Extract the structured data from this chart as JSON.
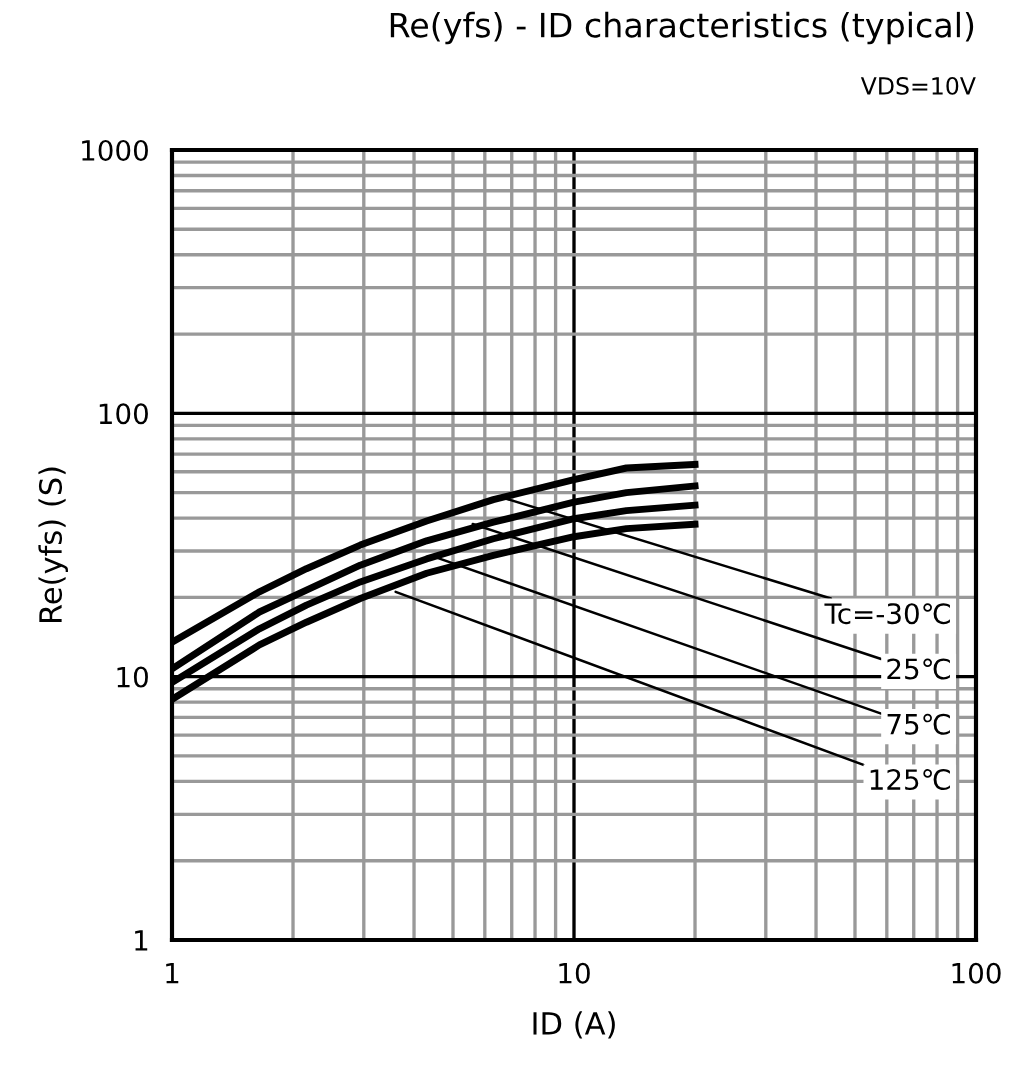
{
  "chart_data": {
    "type": "line",
    "title": "Re(yfs) - ID characteristics (typical)",
    "subtitle": "VDS=10V",
    "xlabel": "ID (A)",
    "ylabel": "Re(yfs) (S)",
    "log": "xy",
    "xlim": [
      1,
      100
    ],
    "ylim": [
      1,
      1000
    ],
    "xticks": [
      1,
      10,
      100
    ],
    "yticks": [
      1,
      10,
      100,
      1000
    ],
    "grid": true,
    "marker": "none",
    "line_style": "solid",
    "series": [
      {
        "color": "#000000",
        "x": [
          1,
          1.65,
          2.16,
          2.94,
          4.3,
          6.3,
          10,
          13.5,
          20
        ],
        "values": [
          13.5,
          21,
          25.7,
          31.6,
          39,
          47,
          56,
          62,
          64
        ]
      },
      {
        "color": "#000000",
        "x": [
          1,
          1.65,
          2.16,
          2.94,
          4.3,
          6.3,
          10,
          13.5,
          20
        ],
        "values": [
          10.7,
          17.6,
          21.3,
          26.5,
          32.8,
          38.6,
          46,
          50,
          53
        ]
      },
      {
        "color": "#000000",
        "x": [
          1,
          1.65,
          2.16,
          2.94,
          4.3,
          6.3,
          10,
          13.5,
          20
        ],
        "values": [
          9.5,
          15.2,
          18.7,
          22.9,
          28,
          33.4,
          39.8,
          42.7,
          44.8
        ]
      },
      {
        "color": "#000000",
        "x": [
          1,
          1.65,
          2.16,
          2.94,
          4.3,
          6.3,
          10,
          13.5,
          20
        ],
        "values": [
          8.2,
          13.2,
          16.1,
          19.8,
          24.7,
          28.9,
          34,
          36.5,
          37.9
        ]
      }
    ],
    "annotations": [
      {
        "text": "Tc=-30℃",
        "x": 6.6,
        "y": 48
      },
      {
        "text": "25℃",
        "x": 5.6,
        "y": 38
      },
      {
        "text": "75℃",
        "x": 4.5,
        "y": 28.5
      },
      {
        "text": "125℃",
        "x": 3.6,
        "y": 21
      }
    ]
  }
}
